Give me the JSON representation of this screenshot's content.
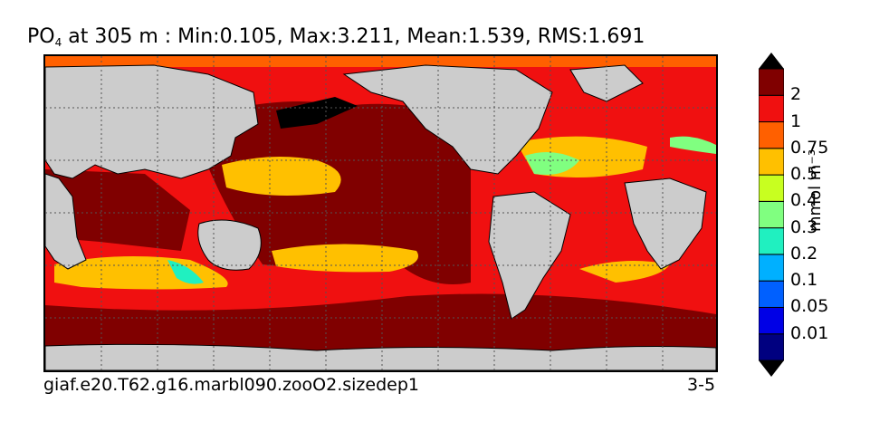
{
  "title": {
    "var_main": "PO",
    "var_sub": "4",
    "rest": " at 305 m : Min:0.105, Max:3.211, Mean:1.539, RMS:1.691"
  },
  "footer": {
    "case_name": "giaf.e20.T62.g16.marbl090.zooO2.sizedep1",
    "years": "3-5"
  },
  "colorbar": {
    "label": "mmol m⁻³",
    "ticks": [
      "2",
      "1",
      "0.75",
      "0.5",
      "0.4",
      "0.3",
      "0.2",
      "0.1",
      "0.05",
      "0.01"
    ],
    "colors": [
      "#000080",
      "#0000e6",
      "#0060ff",
      "#00b0ff",
      "#20f0c0",
      "#80ff80",
      "#c8ff20",
      "#ffc000",
      "#ff6000",
      "#f01010",
      "#800000"
    ]
  },
  "map": {
    "land_color": "#cccccc",
    "ice_color": "#ffffff"
  }
}
